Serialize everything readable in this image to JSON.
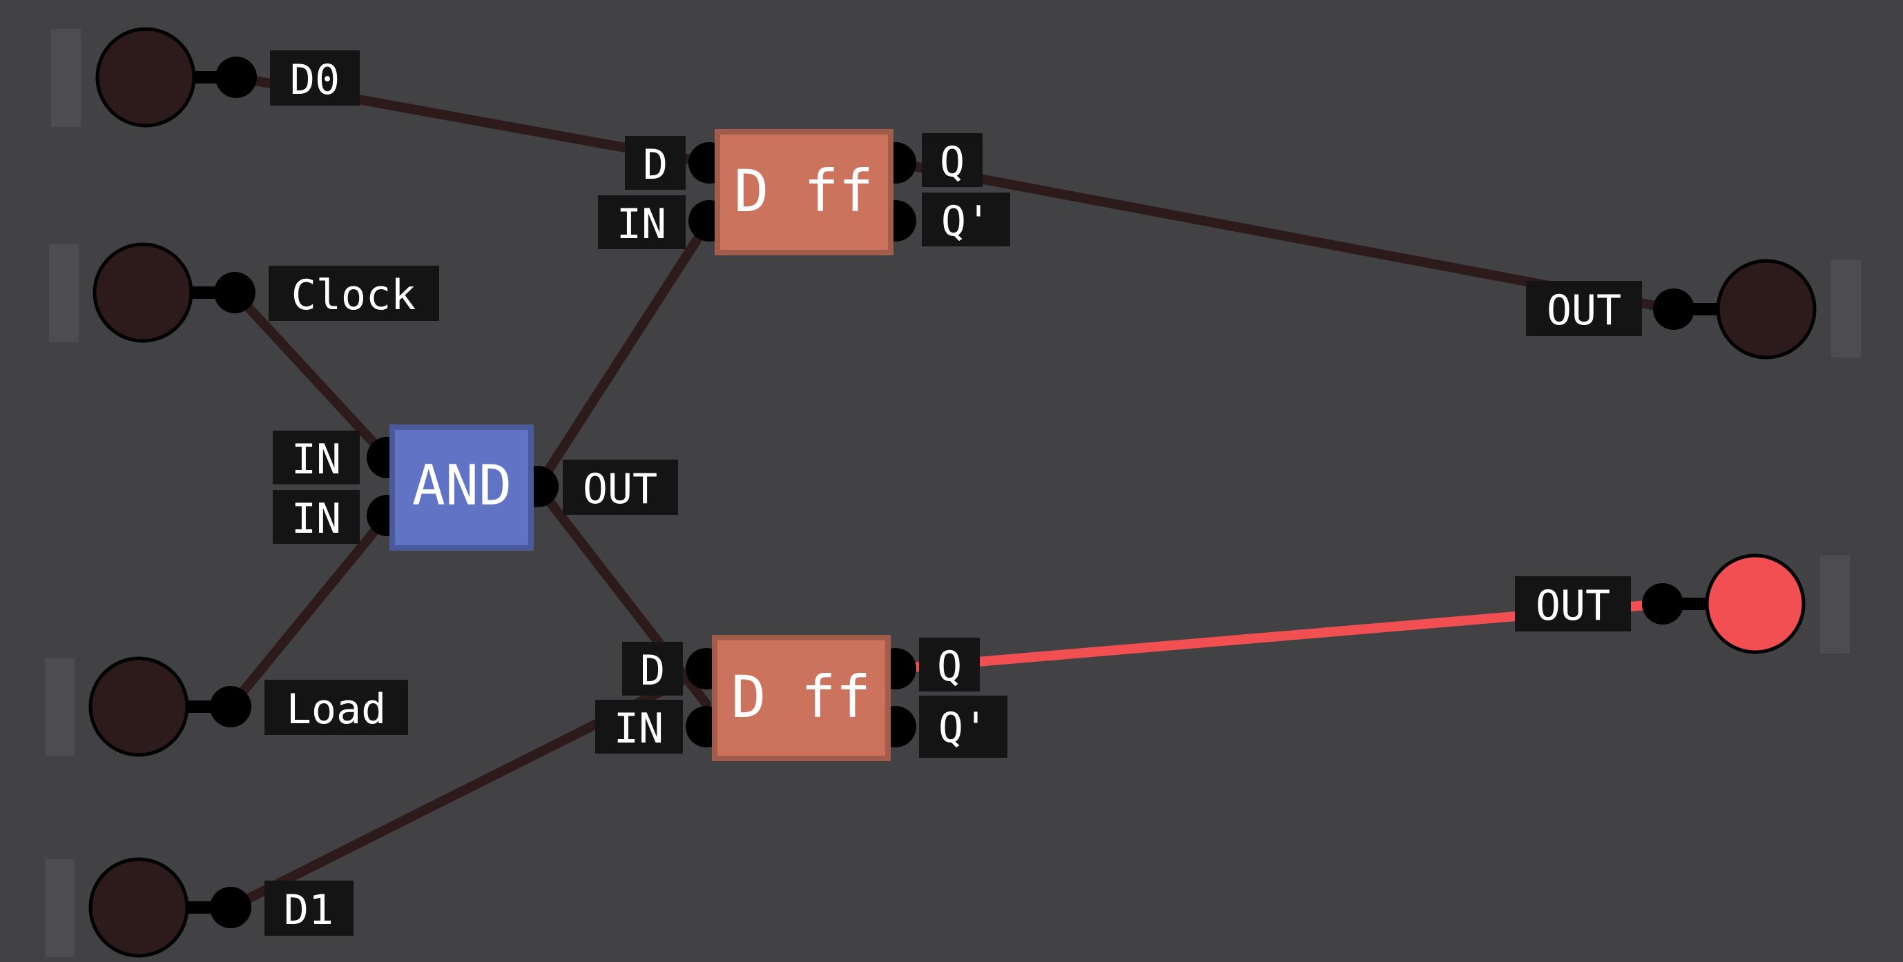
{
  "colors": {
    "background": "#424244",
    "wire_off": "#2d1a1b",
    "wire_on": "#f24f52",
    "node_off": "#2d1a1b",
    "node_on": "#f24f52",
    "pin": "#000000",
    "label_bg": "#141414",
    "flipflop_fill": "#cc735e",
    "flipflop_border": "#a15c4b",
    "and_fill": "#6173c5",
    "and_border": "#4b5a9c",
    "io_handle": "#4d4d4f"
  },
  "inputs": [
    {
      "id": "d0",
      "label": "D0",
      "state": "off"
    },
    {
      "id": "clock",
      "label": "Clock",
      "state": "off"
    },
    {
      "id": "load",
      "label": "Load",
      "state": "off"
    },
    {
      "id": "d1",
      "label": "D1",
      "state": "off"
    }
  ],
  "outputs": [
    {
      "id": "out-top",
      "label": "OUT",
      "state": "off"
    },
    {
      "id": "out-bottom",
      "label": "OUT",
      "state": "on"
    }
  ],
  "gates": {
    "and": {
      "title": "AND",
      "pins_in": [
        "IN",
        "IN"
      ],
      "pin_out": "OUT"
    },
    "dff_top": {
      "title": "D ff",
      "pins_in": [
        "D",
        "IN"
      ],
      "pins_out": [
        "Q",
        "Q'"
      ]
    },
    "dff_bottom": {
      "title": "D ff",
      "pins_in": [
        "D",
        "IN"
      ],
      "pins_out": [
        "Q",
        "Q'"
      ]
    }
  },
  "wires": [
    {
      "from": "D0",
      "to": "D ff (top).D",
      "state": "off"
    },
    {
      "from": "Clock",
      "to": "AND.IN",
      "state": "off"
    },
    {
      "from": "Load",
      "to": "AND.IN",
      "state": "off"
    },
    {
      "from": "AND.OUT",
      "to": "D ff (top).IN",
      "state": "off"
    },
    {
      "from": "AND.OUT",
      "to": "D ff (bottom).D",
      "state": "off"
    },
    {
      "from": "D1",
      "to": "D ff (bottom).IN",
      "state": "off"
    },
    {
      "from": "D ff (top).Q",
      "to": "OUT (top)",
      "state": "off"
    },
    {
      "from": "D ff (bottom).Q",
      "to": "OUT (bottom)",
      "state": "on"
    }
  ]
}
